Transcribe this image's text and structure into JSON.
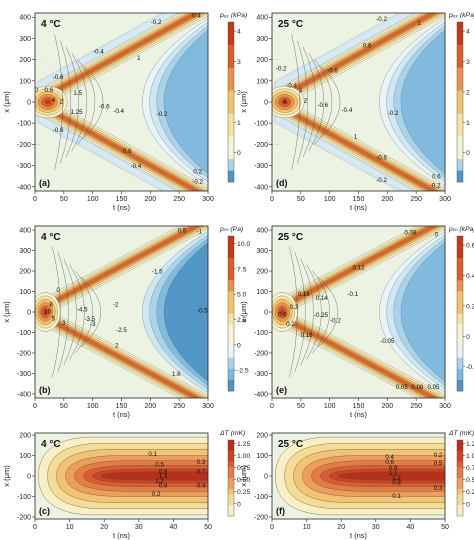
{
  "palette": {
    "pos": [
      "#f7f3d6",
      "#f6e3a2",
      "#f2c36b",
      "#ea9247",
      "#d95f2a",
      "#c13a18"
    ],
    "neg": [
      "#eaf4f8",
      "#cfe6f1",
      "#a9d2e8",
      "#7fb9dc",
      "#4f95c4"
    ],
    "bg": "#edf3e3"
  },
  "chart_data": [
    {
      "type": "heatmap",
      "panel_label": "(a)",
      "temperature": "4 °C",
      "xlabel": "t (ns)",
      "ylabel": "x (μm)",
      "xlim": [
        0,
        300
      ],
      "ylim": [
        -420,
        420
      ],
      "xticks": [
        "0",
        "50",
        "100",
        "150",
        "200",
        "250",
        "300"
      ],
      "yticks": [
        "400",
        "300",
        "200",
        "100",
        "0",
        "-100",
        "-200",
        "-300",
        "-400"
      ],
      "colorbar_label": "pₑₓ (kPa)",
      "colorbar_ticks": [
        "4",
        "3",
        "2",
        "1",
        "0"
      ],
      "contour_labels": [
        {
          "t": 2,
          "x": 60,
          "text": "0"
        },
        {
          "t": 24,
          "x": 60,
          "text": "0.6"
        },
        {
          "t": 40,
          "x": 120,
          "text": "-0.6"
        },
        {
          "t": 32,
          "x": 12,
          "text": "4"
        },
        {
          "t": 46,
          "x": 5,
          "text": "2"
        },
        {
          "t": 74,
          "x": 45,
          "text": "1.5"
        },
        {
          "t": 72,
          "x": -45,
          "text": "1.25"
        },
        {
          "t": 40,
          "x": -130,
          "text": "-0.6"
        },
        {
          "t": 120,
          "x": -18,
          "text": "-0.6"
        },
        {
          "t": 145,
          "x": -40,
          "text": "-0.4"
        },
        {
          "t": 220,
          "x": -55,
          "text": "-0.2"
        },
        {
          "t": 110,
          "x": 240,
          "text": "-0.4"
        },
        {
          "t": 180,
          "x": 210,
          "text": "1"
        },
        {
          "t": 160,
          "x": -230,
          "text": "0.6"
        },
        {
          "t": 175,
          "x": -300,
          "text": "-0.4"
        },
        {
          "t": 210,
          "x": 380,
          "text": "-0.2"
        },
        {
          "t": 280,
          "x": 410,
          "text": "0.4"
        },
        {
          "t": 282,
          "x": -325,
          "text": "0.2"
        },
        {
          "t": 282,
          "x": -372,
          "text": "-0.2"
        }
      ]
    },
    {
      "type": "heatmap",
      "panel_label": "(d)",
      "temperature": "25 °C",
      "xlabel": "t (ns)",
      "ylabel": "x (μm)",
      "xlim": [
        0,
        300
      ],
      "ylim": [
        -420,
        420
      ],
      "xticks": [
        "0",
        "50",
        "100",
        "150",
        "200",
        "250",
        "300"
      ],
      "yticks": [
        "400",
        "300",
        "200",
        "100",
        "0",
        "-100",
        "-200",
        "-300",
        "-400"
      ],
      "colorbar_label": "pₑₓ (kPa)",
      "colorbar_ticks": [
        "4",
        "3",
        "2",
        "1",
        "0"
      ],
      "contour_labels": [
        {
          "t": 16,
          "x": 160,
          "text": "-0.2"
        },
        {
          "t": 34,
          "x": 80,
          "text": "-0.4"
        },
        {
          "t": 50,
          "x": 60,
          "text": "1"
        },
        {
          "t": 22,
          "x": 5,
          "text": "4"
        },
        {
          "t": 58,
          "x": 10,
          "text": "2"
        },
        {
          "t": 88,
          "x": -12,
          "text": "-0.6"
        },
        {
          "t": 130,
          "x": -35,
          "text": "-0.4"
        },
        {
          "t": 210,
          "x": -50,
          "text": "-0.2"
        },
        {
          "t": 105,
          "x": 150,
          "text": "-0.6"
        },
        {
          "t": 165,
          "x": 270,
          "text": "0.6"
        },
        {
          "t": 145,
          "x": -160,
          "text": "1"
        },
        {
          "t": 190,
          "x": -260,
          "text": "-0.6"
        },
        {
          "t": 190,
          "x": -365,
          "text": "-0.2"
        },
        {
          "t": 190,
          "x": 395,
          "text": "-0.2"
        },
        {
          "t": 255,
          "x": 375,
          "text": "1"
        },
        {
          "t": 285,
          "x": -350,
          "text": "0.6"
        },
        {
          "t": 283,
          "x": -392,
          "text": "-0.2"
        }
      ]
    },
    {
      "type": "heatmap",
      "panel_label": "(b)",
      "temperature": "4 °C",
      "xlabel": "t (ns)",
      "ylabel": "x (μm)",
      "xlim": [
        0,
        300
      ],
      "ylim": [
        -420,
        420
      ],
      "xticks": [
        "0",
        "50",
        "100",
        "150",
        "200",
        "250",
        "300"
      ],
      "yticks": [
        "400",
        "300",
        "200",
        "100",
        "0",
        "-100",
        "-200",
        "-300",
        "-400"
      ],
      "colorbar_label": "pₜₕ (Pa)",
      "colorbar_ticks": [
        "10.0",
        "7.5",
        "5.0",
        "2.5",
        "0",
        "-2.5"
      ],
      "contour_labels": [
        {
          "t": 28,
          "x": 40,
          "text": "8"
        },
        {
          "t": 22,
          "x": 4,
          "text": "10"
        },
        {
          "t": 32,
          "x": -30,
          "text": "5"
        },
        {
          "t": 50,
          "x": -52,
          "text": "3"
        },
        {
          "t": 82,
          "x": 15,
          "text": "-4.5"
        },
        {
          "t": 95,
          "x": -32,
          "text": "-3.5"
        },
        {
          "t": 100,
          "x": -55,
          "text": "-3"
        },
        {
          "t": 140,
          "x": 40,
          "text": "-2"
        },
        {
          "t": 150,
          "x": -85,
          "text": "-2.5"
        },
        {
          "t": 212,
          "x": 200,
          "text": "-1.5"
        },
        {
          "t": 255,
          "x": 400,
          "text": "0.5"
        },
        {
          "t": 285,
          "x": 395,
          "text": "-1"
        },
        {
          "t": 142,
          "x": -160,
          "text": "2"
        },
        {
          "t": 245,
          "x": -300,
          "text": "1.6"
        },
        {
          "t": 290,
          "x": 10,
          "text": "-0.5"
        },
        {
          "t": 40,
          "x": 110,
          "text": "0"
        }
      ]
    },
    {
      "type": "heatmap",
      "panel_label": "(e)",
      "temperature": "25 °C",
      "xlabel": "t (ns)",
      "ylabel": "x (μm)",
      "xlim": [
        0,
        300
      ],
      "ylim": [
        -420,
        420
      ],
      "xticks": [
        "0",
        "50",
        "100",
        "150",
        "200",
        "250",
        "300"
      ],
      "yticks": [
        "400",
        "300",
        "200",
        "100",
        "0",
        "-100",
        "-200",
        "-300",
        "-400"
      ],
      "colorbar_label": "pₜₕ (kPa)",
      "colorbar_ticks": [
        "0.6",
        "0.4",
        "0.2",
        "0",
        "-0.2"
      ],
      "contour_labels": [
        {
          "t": 55,
          "x": 90,
          "text": "0.16"
        },
        {
          "t": 86,
          "x": 72,
          "text": "0.14"
        },
        {
          "t": 38,
          "x": 28,
          "text": "0.3"
        },
        {
          "t": 18,
          "x": -10,
          "text": "0.6"
        },
        {
          "t": 32,
          "x": -55,
          "text": "0.2"
        },
        {
          "t": 85,
          "x": -12,
          "text": "-0.25"
        },
        {
          "t": 110,
          "x": -40,
          "text": "-0.2"
        },
        {
          "t": 60,
          "x": -110,
          "text": "0.16"
        },
        {
          "t": 140,
          "x": 90,
          "text": "-0.1"
        },
        {
          "t": 150,
          "x": 220,
          "text": "0.12"
        },
        {
          "t": 200,
          "x": -140,
          "text": "-0.05"
        },
        {
          "t": 240,
          "x": 390,
          "text": "0.08"
        },
        {
          "t": 285,
          "x": 380,
          "text": "0"
        },
        {
          "t": 225,
          "x": -365,
          "text": "0.05"
        },
        {
          "t": 252,
          "x": -365,
          "text": "0.08"
        },
        {
          "t": 280,
          "x": -365,
          "text": "0.05"
        }
      ]
    },
    {
      "type": "heatmap",
      "panel_label": "(c)",
      "temperature": "4 °C",
      "xlabel": "t (ns)",
      "ylabel": "x (μm)",
      "xlim": [
        0,
        50
      ],
      "ylim": [
        -210,
        210
      ],
      "xticks": [
        "0",
        "10",
        "20",
        "30",
        "40",
        "50"
      ],
      "yticks": [
        "200",
        "100",
        "0",
        "-100",
        "-200"
      ],
      "colorbar_label": "ΔT (mK)",
      "colorbar_ticks": [
        "1.25",
        "1.00",
        "0.75",
        "0.50",
        "0.25",
        "0"
      ],
      "contour_labels": [
        {
          "t": 34,
          "x": 110,
          "text": "0.1"
        },
        {
          "t": 36,
          "x": 58,
          "text": "0.5"
        },
        {
          "t": 37,
          "x": 25,
          "text": "0.9"
        },
        {
          "t": 37,
          "x": 2,
          "text": "1.3"
        },
        {
          "t": 36,
          "x": -22,
          "text": "1.2"
        },
        {
          "t": 37,
          "x": -45,
          "text": "0.8"
        },
        {
          "t": 35,
          "x": -85,
          "text": "0.2"
        },
        {
          "t": 48,
          "x": 70,
          "text": "0.3"
        },
        {
          "t": 48,
          "x": 25,
          "text": "0.7"
        },
        {
          "t": 48,
          "x": -45,
          "text": "0.4"
        }
      ]
    },
    {
      "type": "heatmap",
      "panel_label": "(f)",
      "temperature": "25 °C",
      "xlabel": "t (ns)",
      "ylabel": "x (μm)",
      "xlim": [
        0,
        50
      ],
      "ylim": [
        -210,
        210
      ],
      "xticks": [
        "0",
        "10",
        "20",
        "30",
        "40",
        "50"
      ],
      "yticks": [
        "200",
        "100",
        "0",
        "-100",
        "-200"
      ],
      "colorbar_label": "ΔT (mK)",
      "colorbar_ticks": [
        "1.25",
        "1.00",
        "0.75",
        "0.50",
        "0.25",
        "0"
      ],
      "contour_labels": [
        {
          "t": 34,
          "x": 95,
          "text": "0.4"
        },
        {
          "t": 34,
          "x": 70,
          "text": "0.6"
        },
        {
          "t": 35,
          "x": 42,
          "text": "0.9"
        },
        {
          "t": 35,
          "x": 18,
          "text": "1.1"
        },
        {
          "t": 36,
          "x": -8,
          "text": "1.2"
        },
        {
          "t": 36,
          "x": -30,
          "text": "0.8"
        },
        {
          "t": 36,
          "x": -95,
          "text": "0.1"
        },
        {
          "t": 48,
          "x": 105,
          "text": "0.2"
        },
        {
          "t": 48,
          "x": 65,
          "text": "0.5"
        },
        {
          "t": 48,
          "x": -55,
          "text": "0.3"
        }
      ]
    }
  ]
}
